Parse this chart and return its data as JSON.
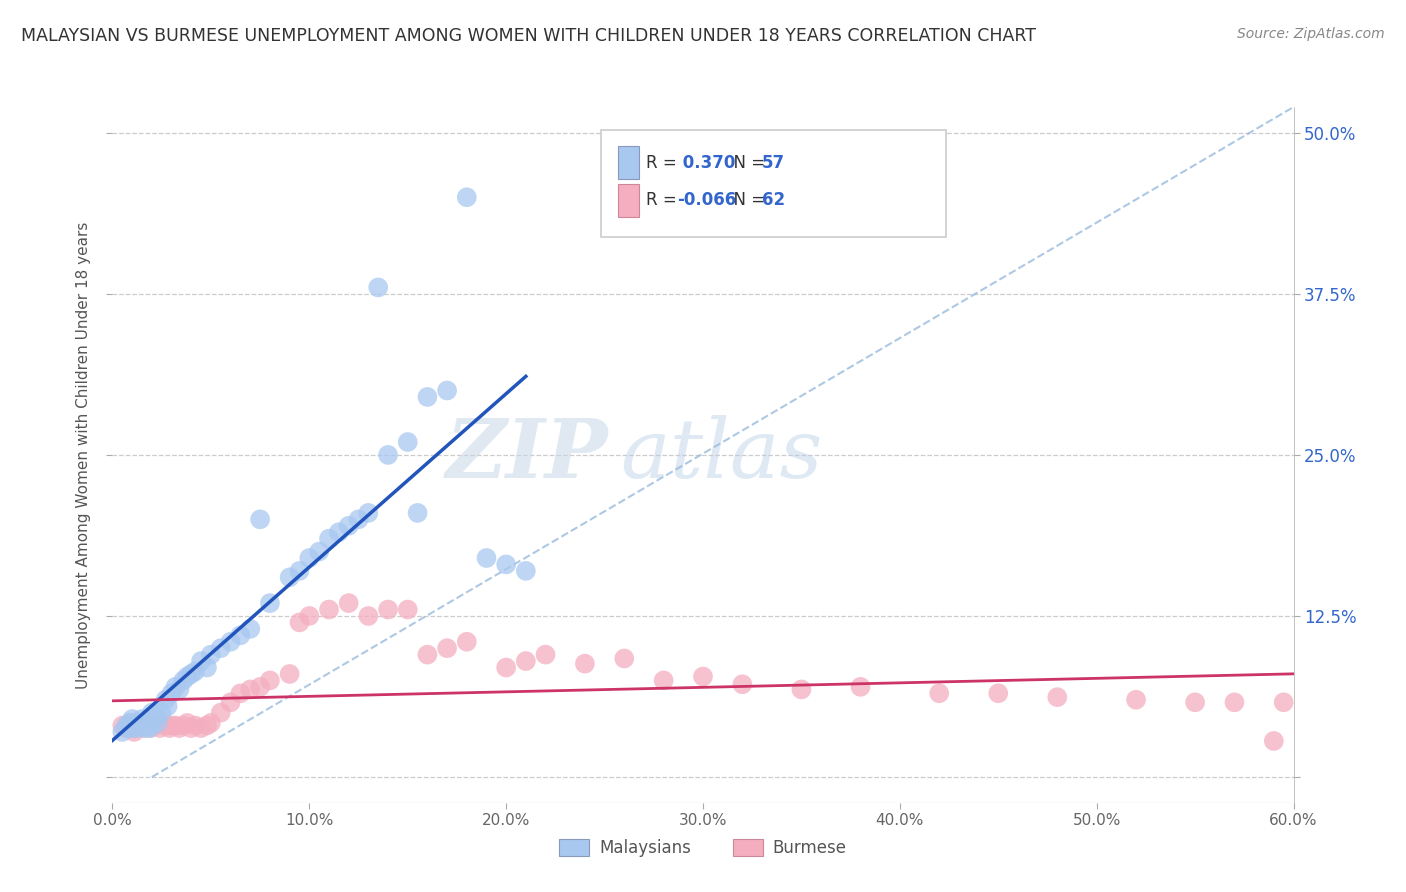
{
  "title": "MALAYSIAN VS BURMESE UNEMPLOYMENT AMONG WOMEN WITH CHILDREN UNDER 18 YEARS CORRELATION CHART",
  "source": "Source: ZipAtlas.com",
  "ylabel": "Unemployment Among Women with Children Under 18 years",
  "xlim": [
    0.0,
    0.6
  ],
  "ylim": [
    -0.02,
    0.52
  ],
  "xticks": [
    0.0,
    0.1,
    0.2,
    0.3,
    0.4,
    0.5,
    0.6
  ],
  "yticks": [
    0.0,
    0.125,
    0.25,
    0.375,
    0.5
  ],
  "xticklabels": [
    "0.0%",
    "10.0%",
    "20.0%",
    "30.0%",
    "40.0%",
    "50.0%",
    "60.0%"
  ],
  "yticklabels": [
    "",
    "12.5%",
    "25.0%",
    "37.5%",
    "50.0%"
  ],
  "R_malaysian": 0.37,
  "N_malaysian": 57,
  "R_burmese": -0.066,
  "N_burmese": 62,
  "legend_labels": [
    "Malaysians",
    "Burmese"
  ],
  "color_malaysian": "#a8c8f0",
  "color_burmese": "#f4aec0",
  "line_color_malaysian": "#2255bb",
  "line_color_burmese": "#cc3366",
  "watermark_zip": "ZIP",
  "watermark_atlas": "atlas",
  "background_color": "#ffffff",
  "grid_color": "#cccccc",
  "title_color": "#333333",
  "tick_color_right": "#3366cc",
  "malaysian_x": [
    0.005,
    0.007,
    0.008,
    0.009,
    0.01,
    0.01,
    0.011,
    0.012,
    0.013,
    0.014,
    0.015,
    0.016,
    0.017,
    0.018,
    0.019,
    0.02,
    0.021,
    0.022,
    0.023,
    0.025,
    0.027,
    0.028,
    0.03,
    0.032,
    0.034,
    0.036,
    0.038,
    0.04,
    0.042,
    0.045,
    0.048,
    0.05,
    0.055,
    0.06,
    0.065,
    0.07,
    0.075,
    0.08,
    0.09,
    0.095,
    0.1,
    0.105,
    0.11,
    0.115,
    0.12,
    0.125,
    0.13,
    0.135,
    0.14,
    0.15,
    0.155,
    0.16,
    0.17,
    0.18,
    0.19,
    0.2,
    0.21
  ],
  "malaysian_y": [
    0.035,
    0.04,
    0.038,
    0.042,
    0.045,
    0.038,
    0.04,
    0.038,
    0.042,
    0.04,
    0.045,
    0.038,
    0.042,
    0.04,
    0.038,
    0.05,
    0.045,
    0.048,
    0.042,
    0.05,
    0.06,
    0.055,
    0.065,
    0.07,
    0.068,
    0.075,
    0.078,
    0.08,
    0.082,
    0.09,
    0.085,
    0.095,
    0.1,
    0.105,
    0.11,
    0.115,
    0.2,
    0.135,
    0.155,
    0.16,
    0.17,
    0.175,
    0.185,
    0.19,
    0.195,
    0.2,
    0.205,
    0.38,
    0.25,
    0.26,
    0.205,
    0.295,
    0.3,
    0.45,
    0.17,
    0.165,
    0.16
  ],
  "burmese_x": [
    0.005,
    0.007,
    0.009,
    0.01,
    0.011,
    0.012,
    0.014,
    0.015,
    0.016,
    0.018,
    0.019,
    0.02,
    0.022,
    0.024,
    0.025,
    0.027,
    0.029,
    0.03,
    0.032,
    0.034,
    0.036,
    0.038,
    0.04,
    0.042,
    0.045,
    0.048,
    0.05,
    0.055,
    0.06,
    0.065,
    0.07,
    0.075,
    0.08,
    0.09,
    0.095,
    0.1,
    0.11,
    0.12,
    0.13,
    0.14,
    0.15,
    0.16,
    0.17,
    0.18,
    0.2,
    0.21,
    0.22,
    0.24,
    0.26,
    0.28,
    0.3,
    0.32,
    0.35,
    0.38,
    0.42,
    0.45,
    0.48,
    0.52,
    0.55,
    0.57,
    0.59,
    0.595
  ],
  "burmese_y": [
    0.04,
    0.038,
    0.042,
    0.04,
    0.035,
    0.038,
    0.042,
    0.04,
    0.038,
    0.04,
    0.038,
    0.042,
    0.04,
    0.038,
    0.042,
    0.04,
    0.038,
    0.04,
    0.04,
    0.038,
    0.04,
    0.042,
    0.038,
    0.04,
    0.038,
    0.04,
    0.042,
    0.05,
    0.058,
    0.065,
    0.068,
    0.07,
    0.075,
    0.08,
    0.12,
    0.125,
    0.13,
    0.135,
    0.125,
    0.13,
    0.13,
    0.095,
    0.1,
    0.105,
    0.085,
    0.09,
    0.095,
    0.088,
    0.092,
    0.075,
    0.078,
    0.072,
    0.068,
    0.07,
    0.065,
    0.065,
    0.062,
    0.06,
    0.058,
    0.058,
    0.028,
    0.058
  ]
}
